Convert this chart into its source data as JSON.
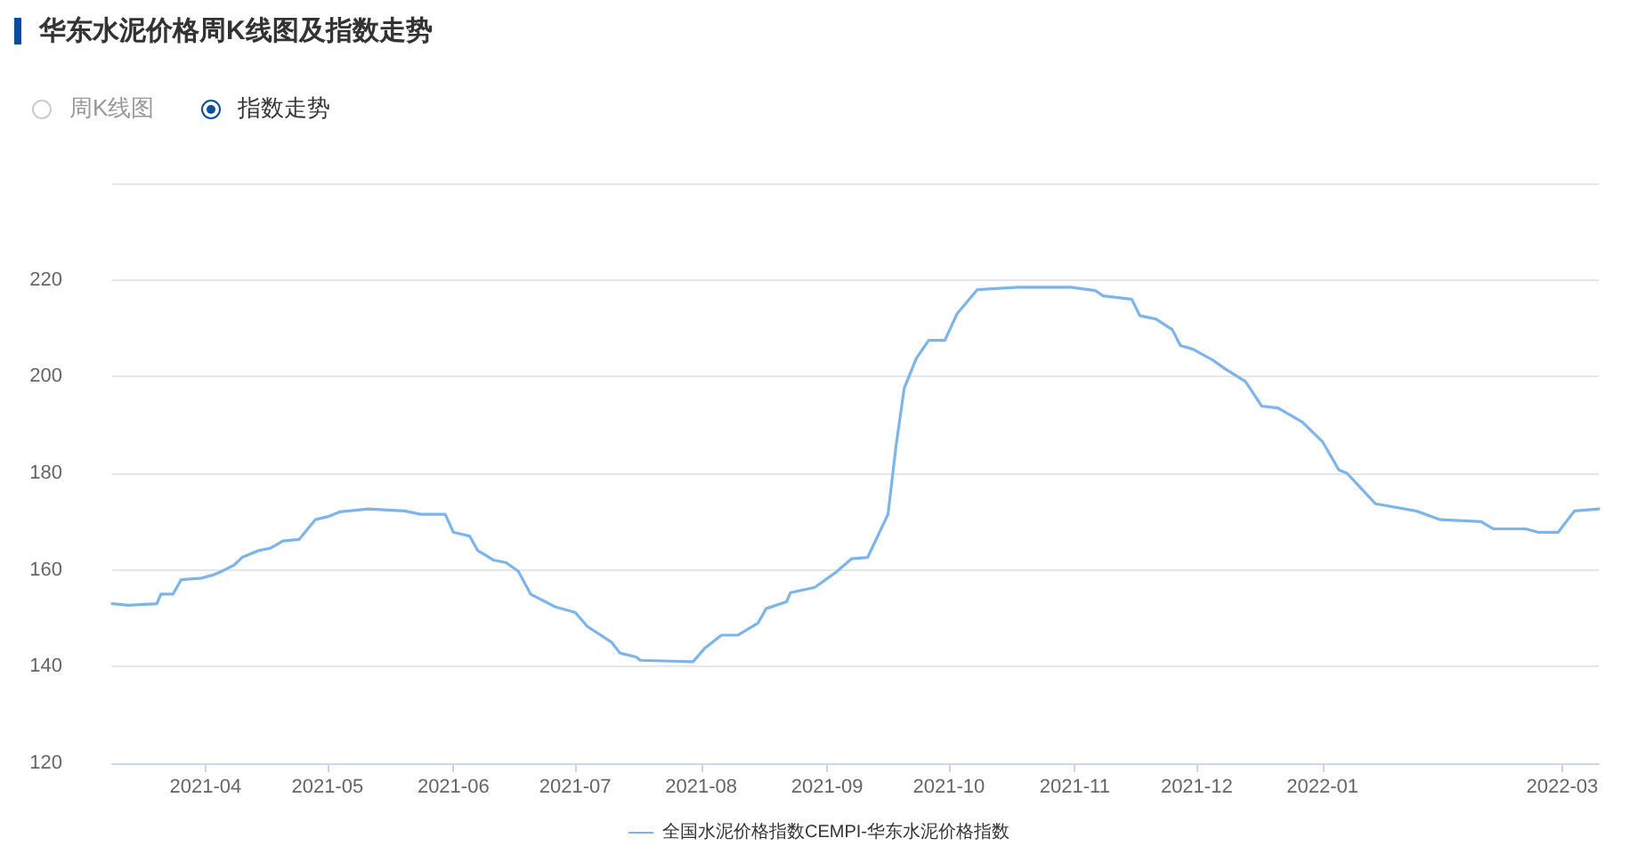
{
  "chart_data": {
    "type": "line",
    "title": "华东水泥价格周K线图及指数走势",
    "annotations": [
      "周K线图",
      "指数走势"
    ],
    "x": [
      "2021-03-09",
      "2021-03-13",
      "2021-03-20",
      "2021-03-21",
      "2021-03-24",
      "2021-03-26",
      "2021-03-31",
      "2021-04-03",
      "2021-04-05",
      "2021-04-08",
      "2021-04-10",
      "2021-04-14",
      "2021-04-17",
      "2021-04-20",
      "2021-04-24",
      "2021-04-28",
      "2021-05-01",
      "2021-05-04",
      "2021-05-11",
      "2021-05-20",
      "2021-05-24",
      "2021-05-30",
      "2021-06-01",
      "2021-06-05",
      "2021-06-07",
      "2021-06-11",
      "2021-06-14",
      "2021-06-17",
      "2021-06-20",
      "2021-06-26",
      "2021-07-01",
      "2021-07-04",
      "2021-07-10",
      "2021-07-12",
      "2021-07-16",
      "2021-07-17",
      "2021-07-30",
      "2021-08-02",
      "2021-08-06",
      "2021-08-10",
      "2021-08-15",
      "2021-08-17",
      "2021-08-22",
      "2021-08-23",
      "2021-08-29",
      "2021-09-03",
      "2021-09-07",
      "2021-09-11",
      "2021-09-16",
      "2021-09-18",
      "2021-09-20",
      "2021-09-23",
      "2021-09-26",
      "2021-09-30",
      "2021-10-03",
      "2021-10-08",
      "2021-10-18",
      "2021-10-31",
      "2021-11-06",
      "2021-11-08",
      "2021-11-15",
      "2021-11-17",
      "2021-11-21",
      "2021-11-25",
      "2021-11-27",
      "2021-11-30",
      "2021-12-05",
      "2021-12-08",
      "2021-12-13",
      "2021-12-17",
      "2021-12-21",
      "2021-12-27",
      "2022-01-01",
      "2022-01-05",
      "2022-01-07",
      "2022-01-14",
      "2022-01-24",
      "2022-01-30",
      "2022-02-09",
      "2022-02-12",
      "2022-02-20",
      "2022-02-23",
      "2022-02-28",
      "2022-03-04",
      "2022-03-10"
    ],
    "series": [
      {
        "name": "全国水泥价格指数CEMPI-华东水泥价格指数",
        "color": "#7cb5ec",
        "values": [
          153,
          152.7,
          153,
          155,
          155,
          158,
          158.3,
          159,
          159.7,
          161,
          162.6,
          164,
          164.5,
          166,
          166.3,
          170.4,
          171,
          172,
          172.6,
          172.2,
          171.5,
          171.5,
          167.8,
          167,
          164,
          162,
          161.5,
          159.7,
          155,
          152.4,
          151.2,
          148.3,
          145,
          142.8,
          142,
          141.3,
          141,
          143.9,
          146.5,
          146.5,
          149,
          152,
          153.4,
          155.3,
          156.4,
          159.4,
          162.3,
          162.6,
          171.5,
          185.8,
          197.6,
          203.8,
          207.5,
          207.5,
          213,
          218,
          218.5,
          218.5,
          217.8,
          216.7,
          216,
          212.6,
          211.9,
          209.7,
          206.4,
          205.7,
          203.4,
          201.6,
          199,
          193.9,
          193.5,
          190.6,
          186.5,
          180.7,
          180,
          173.7,
          172.2,
          170.4,
          170,
          168.5,
          168.5,
          167.8,
          167.8,
          172.2,
          172.6
        ]
      }
    ],
    "xlim": [
      "2021-03-09",
      "2022-03-10"
    ],
    "xticks": [
      "2021-04",
      "2021-05",
      "2021-06",
      "2021-07",
      "2021-08",
      "2021-09",
      "2021-10",
      "2021-11",
      "2021-12",
      "2022-01",
      "2022-03"
    ],
    "ylim": [
      120,
      240
    ],
    "yticks": [
      120,
      140,
      160,
      180,
      200,
      220,
      {
        "value": 240,
        "label": null
      }
    ],
    "grid": "y",
    "legend": "bottom",
    "marker": "none",
    "line_style": "solid"
  }
}
